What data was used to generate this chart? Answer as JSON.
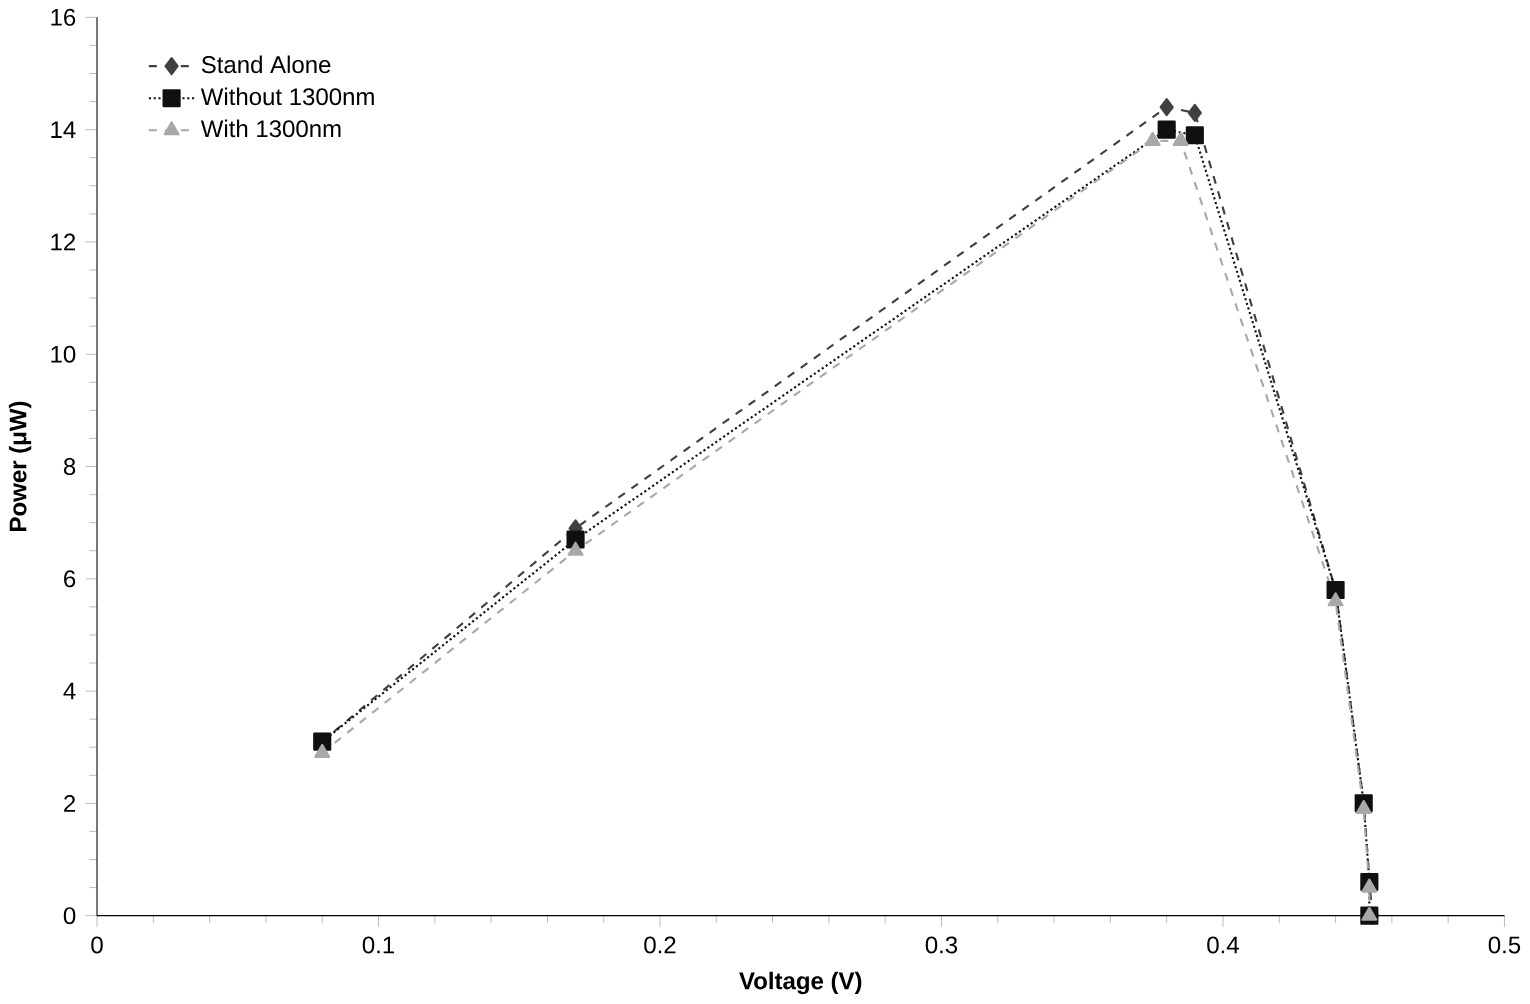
{
  "chart_data": {
    "type": "line",
    "xlabel": "Voltage (V)",
    "ylabel": "Power (μW)",
    "xlim": [
      0,
      0.5
    ],
    "xticks": [
      0,
      0.1,
      0.2,
      0.3,
      0.4,
      0.5
    ],
    "ylim": [
      0,
      16
    ],
    "yticks": [
      0,
      2,
      4,
      6,
      8,
      10,
      12,
      14,
      16
    ],
    "grid": false,
    "legend": "top left",
    "series": [
      {
        "name": "Stand Alone",
        "color": "#404040",
        "marker": "diamond",
        "line_style": "dashed",
        "x": [
          0.08,
          0.17,
          0.38,
          0.39,
          0.44,
          0.45,
          0.452,
          0.453
        ],
        "values": [
          3.1,
          6.9,
          14.4,
          14.3,
          5.8,
          2.0,
          null,
          0
        ]
      },
      {
        "name": "Without 1300nm",
        "color": "#101010",
        "marker": "square",
        "line_style": "dotted",
        "x": [
          0.08,
          0.17,
          0.38,
          0.39,
          0.44,
          0.45,
          0.452,
          0.452
        ],
        "values": [
          3.1,
          6.7,
          14.0,
          13.9,
          5.8,
          2.0,
          0.6,
          0
        ]
      },
      {
        "name": "With 1300nm",
        "color": "#a8a8a8",
        "marker": "triangle",
        "line_style": "dashed",
        "x": [
          0.08,
          0.17,
          0.375,
          0.385,
          0.44,
          0.45,
          0.452,
          0.452
        ],
        "values": [
          2.9,
          6.5,
          13.8,
          13.8,
          5.6,
          1.9,
          0.5,
          0
        ]
      }
    ]
  }
}
